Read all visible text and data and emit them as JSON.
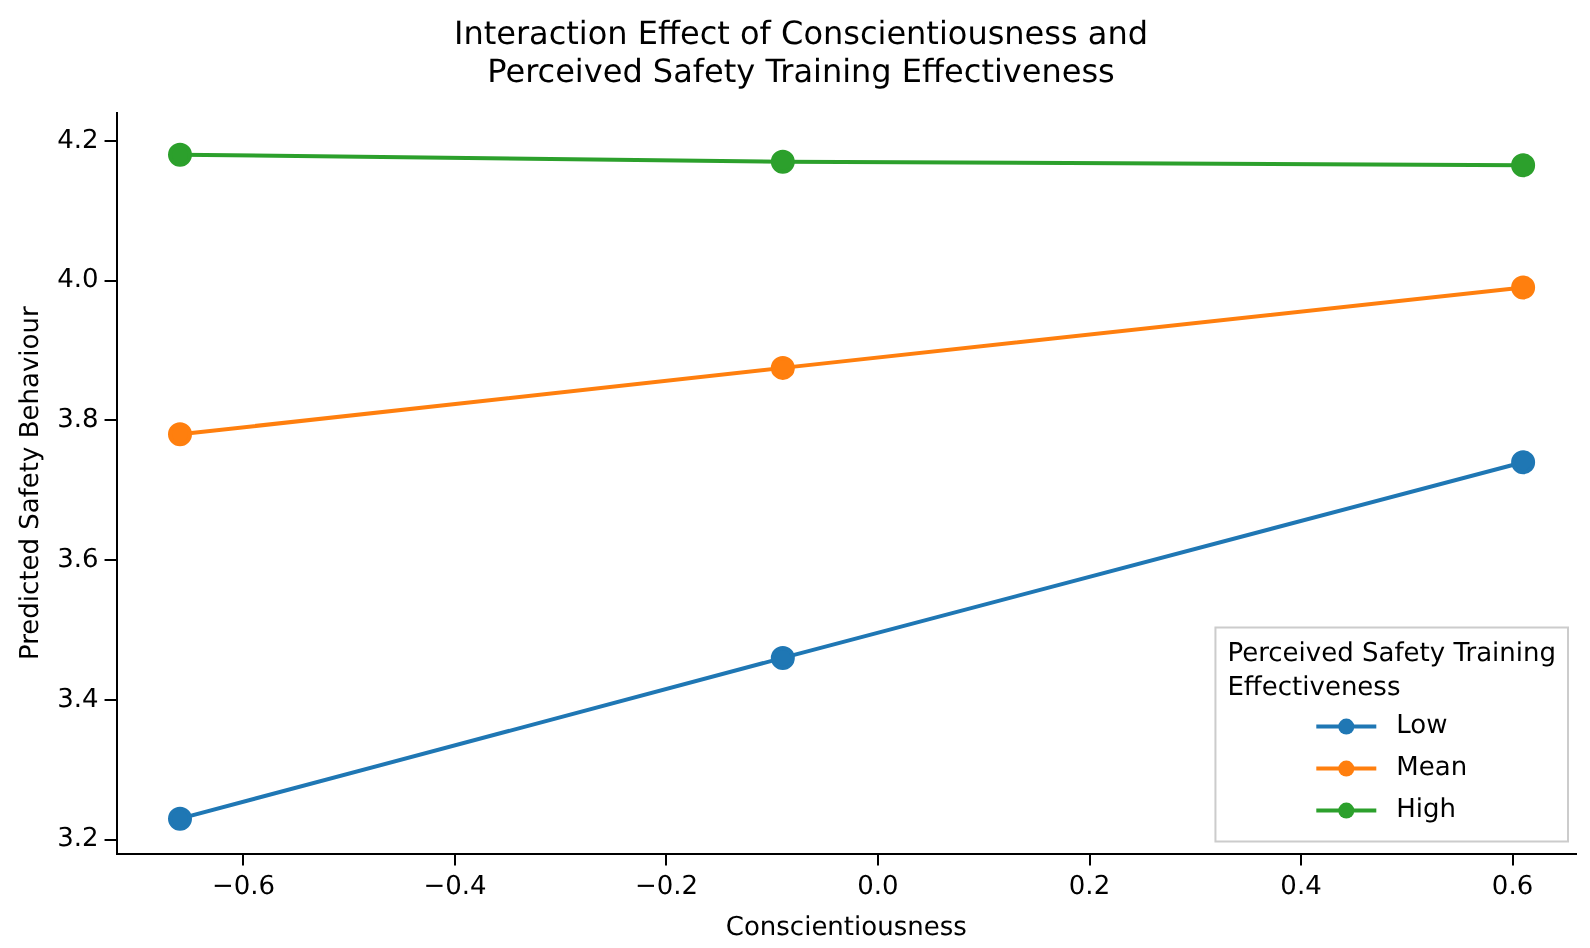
{
  "chart_data": {
    "type": "line",
    "title": "Interaction Effect of Conscientiousness and Perceived Safety Training Effectiveness",
    "xlabel": "Conscientiousness",
    "ylabel": "Predicted Safety Behaviour",
    "legend_title": "Perceived Safety Training Effectiveness",
    "x": [
      -0.66,
      -0.09,
      0.61
    ],
    "series": [
      {
        "name": "Low",
        "color": "#1f77b4",
        "values": [
          3.23,
          3.46,
          3.74
        ]
      },
      {
        "name": "Mean",
        "color": "#ff7f0e",
        "values": [
          3.78,
          3.875,
          3.99
        ]
      },
      {
        "name": "High",
        "color": "#2ca02c",
        "values": [
          4.18,
          4.17,
          4.165
        ]
      }
    ],
    "xlim": [
      -0.72,
      0.66
    ],
    "xticks": [
      {
        "value": -0.6,
        "label": "−0.6"
      },
      {
        "value": -0.4,
        "label": "−0.4"
      },
      {
        "value": -0.2,
        "label": "−0.2"
      },
      {
        "value": 0,
        "label": "0.0"
      },
      {
        "value": 0.2,
        "label": "0.2"
      },
      {
        "value": 0.4,
        "label": "0.4"
      },
      {
        "value": 0.6,
        "label": "0.6"
      }
    ],
    "ylim": [
      3.18,
      4.24
    ],
    "yticks": [
      {
        "value": 3.2,
        "label": "3.2"
      },
      {
        "value": 3.4,
        "label": "3.4"
      },
      {
        "value": 3.6,
        "label": "3.6"
      },
      {
        "value": 3.8,
        "label": "3.8"
      },
      {
        "value": 4,
        "label": "4.0"
      },
      {
        "value": 4.2,
        "label": "4.2"
      }
    ],
    "grid": false,
    "legend": "bottom right",
    "marker": "circle",
    "line_style": "solid"
  }
}
